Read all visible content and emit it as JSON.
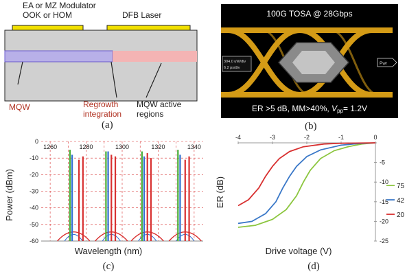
{
  "panel_a": {
    "top_label_line1": "EA or MZ Modulator",
    "top_label_line2": "OOK or HOM",
    "top_label_right": "DFB Laser",
    "label_mqw": "MQW",
    "label_regrowth_line1": "Regrowth",
    "label_regrowth_line2": "integration",
    "label_active_line1": "MQW active",
    "label_active_line2": "regions",
    "caption": "(a)",
    "colors": {
      "chip": "#d0d0d0",
      "contact": "#f2e000",
      "mqw_mod": "#b8b0e8",
      "mqw_laser": "#f4b4b4",
      "red_text": "#b03020"
    }
  },
  "panel_b": {
    "title": "100G TOSA @ 28Gbps",
    "bottom_text_prefix": "ER >5 dB, MM>40%, ",
    "bottom_text_vpp": "V",
    "bottom_text_vpp_sub": "pp",
    "bottom_text_suffix": "= 1.2V",
    "box_line1": "304.0 uW/div",
    "box_line2": "6.2 ps/div",
    "marker_text": "Pwr",
    "caption": "(b)",
    "colors": {
      "background": "#000000",
      "eye": "#e0a418",
      "mask": "#8a8a8a",
      "inner": "#c4c4c4"
    }
  },
  "chart_data": [
    {
      "type": "line",
      "panel": "c",
      "xlabel": "Wavelength (nm)",
      "ylabel": "Power (dBm)",
      "xlim": [
        1255,
        1345
      ],
      "ylim": [
        -60,
        0
      ],
      "x_ticks": [
        "1260",
        "1280",
        "1300",
        "1320",
        "1340"
      ],
      "y_ticks": [
        "0",
        "-10",
        "-20",
        "-30",
        "-40",
        "-50",
        "-60"
      ],
      "grid": true,
      "groups": [
        {
          "center": 1273,
          "peaks": [
            {
              "color": "#44aa33",
              "x": 1271.0,
              "y": -5
            },
            {
              "color": "#2f6fd0",
              "x": 1272.2,
              "y": -8
            },
            {
              "color": "#d83030",
              "x": 1276.0,
              "y": -11
            },
            {
              "color": "#d83030",
              "x": 1278.2,
              "y": -9
            }
          ]
        },
        {
          "center": 1294,
          "peaks": [
            {
              "color": "#44aa33",
              "x": 1291.0,
              "y": -6
            },
            {
              "color": "#2f6fd0",
              "x": 1292.2,
              "y": -6
            },
            {
              "color": "#d83030",
              "x": 1294.0,
              "y": -8
            },
            {
              "color": "#d83030",
              "x": 1296.2,
              "y": -9
            }
          ]
        },
        {
          "center": 1314,
          "peaks": [
            {
              "color": "#44aa33",
              "x": 1311.0,
              "y": -6
            },
            {
              "color": "#2f6fd0",
              "x": 1312.2,
              "y": -9
            },
            {
              "color": "#d83030",
              "x": 1314.0,
              "y": -7
            },
            {
              "color": "#d83030",
              "x": 1316.0,
              "y": -10
            }
          ]
        },
        {
          "center": 1335,
          "peaks": [
            {
              "color": "#44aa33",
              "x": 1331.0,
              "y": -5
            },
            {
              "color": "#2f6fd0",
              "x": 1332.2,
              "y": -8
            },
            {
              "color": "#d83030",
              "x": 1335.0,
              "y": -11
            },
            {
              "color": "#d83030",
              "x": 1337.2,
              "y": -9
            }
          ]
        }
      ],
      "caption": "(c)"
    },
    {
      "type": "line",
      "panel": "d",
      "xlabel": "Drive voltage (V)",
      "ylabel": "ER (dB)",
      "xlim": [
        -4,
        0
      ],
      "ylim": [
        -25,
        0
      ],
      "x_ticks": [
        "-4",
        "-3",
        "-2",
        "-1",
        "0"
      ],
      "y_ticks": [
        "0",
        "-5",
        "-10",
        "-15",
        "-20",
        "-25"
      ],
      "legend_position": "right",
      "series": [
        {
          "name": "75",
          "color": "#8cc63f",
          "points": [
            [
              -4,
              -21.5
            ],
            [
              -3.5,
              -21
            ],
            [
              -3,
              -19.5
            ],
            [
              -2.6,
              -17
            ],
            [
              -2.3,
              -13.5
            ],
            [
              -2.1,
              -10
            ],
            [
              -1.9,
              -7
            ],
            [
              -1.6,
              -4
            ],
            [
              -1.2,
              -2
            ],
            [
              -0.8,
              -1
            ],
            [
              -0.4,
              -0.3
            ],
            [
              0,
              0
            ]
          ]
        },
        {
          "name": "42",
          "color": "#3a78c8",
          "points": [
            [
              -4,
              -20.5
            ],
            [
              -3.6,
              -20
            ],
            [
              -3.2,
              -18
            ],
            [
              -2.9,
              -15
            ],
            [
              -2.7,
              -11.5
            ],
            [
              -2.5,
              -8.5
            ],
            [
              -2.3,
              -6
            ],
            [
              -2,
              -3.5
            ],
            [
              -1.6,
              -1.8
            ],
            [
              -1,
              -0.6
            ],
            [
              -0.5,
              -0.2
            ],
            [
              0,
              0
            ]
          ]
        },
        {
          "name": "20",
          "color": "#d83030",
          "points": [
            [
              -4,
              -16
            ],
            [
              -3.7,
              -14.5
            ],
            [
              -3.4,
              -11.5
            ],
            [
              -3.2,
              -8.5
            ],
            [
              -3,
              -6
            ],
            [
              -2.8,
              -4
            ],
            [
              -2.5,
              -2.2
            ],
            [
              -2.1,
              -1
            ],
            [
              -1.5,
              -0.3
            ],
            [
              -1,
              -0.1
            ],
            [
              0,
              0
            ]
          ]
        }
      ],
      "caption": "(d)"
    }
  ]
}
